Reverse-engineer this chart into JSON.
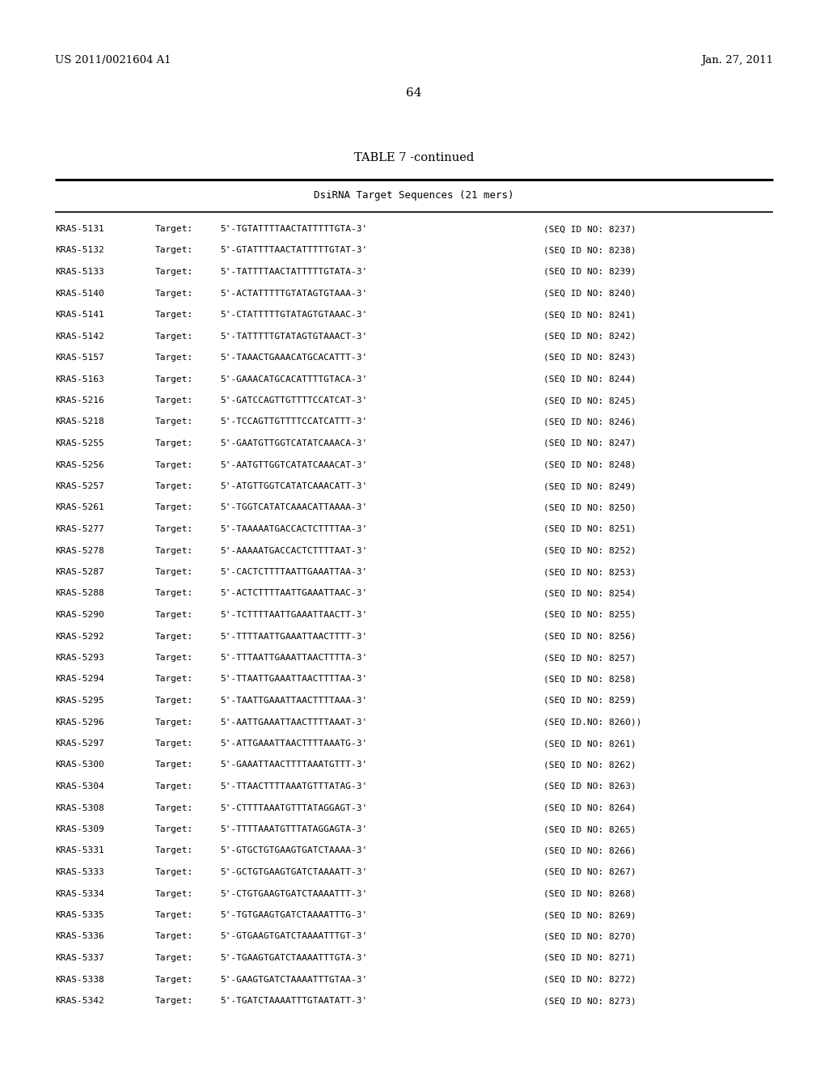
{
  "header_left": "US 2011/0021604 A1",
  "header_right": "Jan. 27, 2011",
  "page_number": "64",
  "table_title": "TABLE 7 -continued",
  "table_subtitle": "DsiRNA Target Sequences (21 mers)",
  "rows": [
    [
      "KRAS-5131",
      "Target:",
      "5'-TGTATTTTAACTATTTTTGTA-3'",
      "(SEQ ID NO: 8237)"
    ],
    [
      "KRAS-5132",
      "Target:",
      "5'-GTATTTTAACTATTTTTGTAT-3'",
      "(SEQ ID NO: 8238)"
    ],
    [
      "KRAS-5133",
      "Target:",
      "5'-TATTTTAACTATTTTTGTATA-3'",
      "(SEQ ID NO: 8239)"
    ],
    [
      "KRAS-5140",
      "Target:",
      "5'-ACTATTTTTGTATAGTGTAAA-3'",
      "(SEQ ID NO: 8240)"
    ],
    [
      "KRAS-5141",
      "Target:",
      "5'-CTATTTTTGTATAGTGTAAAC-3'",
      "(SEQ ID NO: 8241)"
    ],
    [
      "KRAS-5142",
      "Target:",
      "5'-TATTTTTGTATAGTGTAAACT-3'",
      "(SEQ ID NO: 8242)"
    ],
    [
      "KRAS-5157",
      "Target:",
      "5'-TAAACTGAAACATGCACATTT-3'",
      "(SEQ ID NO: 8243)"
    ],
    [
      "KRAS-5163",
      "Target:",
      "5'-GAAACATGCACATTTTGTACA-3'",
      "(SEQ ID NO: 8244)"
    ],
    [
      "KRAS-5216",
      "Target:",
      "5'-GATCCAGTTGTTTTCCATCAT-3'",
      "(SEQ ID NO: 8245)"
    ],
    [
      "KRAS-5218",
      "Target:",
      "5'-TCCAGTTGTTTTCCATCATTT-3'",
      "(SEQ ID NO: 8246)"
    ],
    [
      "KRAS-5255",
      "Target:",
      "5'-GAATGTTGGTCATATCAAACA-3'",
      "(SEQ ID NO: 8247)"
    ],
    [
      "KRAS-5256",
      "Target:",
      "5'-AATGTTGGTCATATCAAACAT-3'",
      "(SEQ ID NO: 8248)"
    ],
    [
      "KRAS-5257",
      "Target:",
      "5'-ATGTTGGTCATATCAAACATT-3'",
      "(SEQ ID NO: 8249)"
    ],
    [
      "KRAS-5261",
      "Target:",
      "5'-TGGTCATATCAAACATTAAAA-3'",
      "(SEQ ID NO: 8250)"
    ],
    [
      "KRAS-5277",
      "Target:",
      "5'-TAAAAATGACCACTCTTTTAA-3'",
      "(SEQ ID NO: 8251)"
    ],
    [
      "KRAS-5278",
      "Target:",
      "5'-AAAAATGACCACTCTTTTAAT-3'",
      "(SEQ ID NO: 8252)"
    ],
    [
      "KRAS-5287",
      "Target:",
      "5'-CACTCTTTTAATTGAAATTAA-3'",
      "(SEQ ID NO: 8253)"
    ],
    [
      "KRAS-5288",
      "Target:",
      "5'-ACTCTTTTAATTGAAATTAAC-3'",
      "(SEQ ID NO: 8254)"
    ],
    [
      "KRAS-5290",
      "Target:",
      "5'-TCTTTTAATTGAAATTAACTT-3'",
      "(SEQ ID NO: 8255)"
    ],
    [
      "KRAS-5292",
      "Target:",
      "5'-TTTTAATTGAAATTAACTTTT-3'",
      "(SEQ ID NO: 8256)"
    ],
    [
      "KRAS-5293",
      "Target:",
      "5'-TTTAATTGAAATTAACTTTTA-3'",
      "(SEQ ID NO: 8257)"
    ],
    [
      "KRAS-5294",
      "Target:",
      "5'-TTAATTGAAATTAACTTTTAA-3'",
      "(SEQ ID NO: 8258)"
    ],
    [
      "KRAS-5295",
      "Target:",
      "5'-TAATTGAAATTAACTTTTAAA-3'",
      "(SEQ ID NO: 8259)"
    ],
    [
      "KRAS-5296",
      "Target:",
      "5'-AATTGAAATTAACTTTTAAAT-3'",
      "(SEQ ID NO: 8260)",
      "SEQ ID.NO:"
    ],
    [
      "KRAS-5297",
      "Target:",
      "5'-ATTGAAATTAACTTTTAAATG-3'",
      "(SEQ ID NO: 8261)"
    ],
    [
      "KRAS-5300",
      "Target:",
      "5'-GAAATTAACTTTTAAATGTTT-3'",
      "(SEQ ID NO: 8262)"
    ],
    [
      "KRAS-5304",
      "Target:",
      "5'-TTAACTTTTAAATGTTTATAG-3'",
      "(SEQ ID NO: 8263)"
    ],
    [
      "KRAS-5308",
      "Target:",
      "5'-CTTTTAAATGTTTATAGGAGT-3'",
      "(SEQ ID NO: 8264)"
    ],
    [
      "KRAS-5309",
      "Target:",
      "5'-TTTTAAATGTTTATAGGAGTA-3'",
      "(SEQ ID NO: 8265)"
    ],
    [
      "KRAS-5331",
      "Target:",
      "5'-GTGCTGTGAAGTGATCTAAAA-3'",
      "(SEQ ID NO: 8266)"
    ],
    [
      "KRAS-5333",
      "Target:",
      "5'-GCTGTGAAGTGATCTAAAATT-3'",
      "(SEQ ID NO: 8267)"
    ],
    [
      "KRAS-5334",
      "Target:",
      "5'-CTGTGAAGTGATCTAAAATTT-3'",
      "(SEQ ID NO: 8268)"
    ],
    [
      "KRAS-5335",
      "Target:",
      "5'-TGTGAAGTGATCTAAAATTTG-3'",
      "(SEQ ID NO: 8269)"
    ],
    [
      "KRAS-5336",
      "Target:",
      "5'-GTGAAGTGATCTAAAATTTGT-3'",
      "(SEQ ID NO: 8270)"
    ],
    [
      "KRAS-5337",
      "Target:",
      "5'-TGAAGTGATCTAAAATTTGTA-3'",
      "(SEQ ID NO: 8271)"
    ],
    [
      "KRAS-5338",
      "Target:",
      "5'-GAAGTGATCTAAAATTTGTAA-3'",
      "(SEQ ID NO: 8272)"
    ],
    [
      "KRAS-5342",
      "Target:",
      "5'-TGATCTAAAATTTGTAATATT-3'",
      "(SEQ ID NO: 8273)"
    ]
  ],
  "bg_color": "#ffffff",
  "text_color": "#000000"
}
